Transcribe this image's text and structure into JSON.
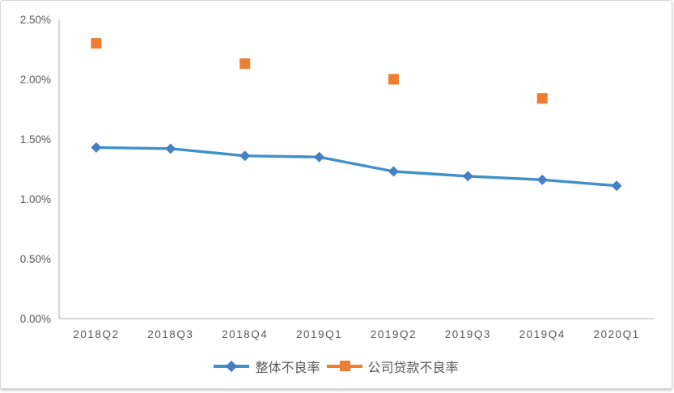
{
  "chart_data": {
    "type": "line",
    "title": "",
    "xlabel": "",
    "ylabel": "",
    "unit": "percent",
    "categories": [
      "2018Q2",
      "2018Q3",
      "2018Q4",
      "2019Q1",
      "2019Q2",
      "2019Q3",
      "2019Q4",
      "2020Q1"
    ],
    "series": [
      {
        "name": "整体不良率",
        "marker": "diamond",
        "show_line": true,
        "line_color": "#4190C9",
        "marker_color": "#467FC4",
        "values": [
          1.43,
          1.42,
          1.36,
          1.35,
          1.23,
          1.19,
          1.16,
          1.11
        ]
      },
      {
        "name": "公司贷款不良率",
        "marker": "square",
        "show_line": false,
        "line_color": "#ED7D31",
        "marker_color": "#ED7D31",
        "values": [
          2.3,
          null,
          2.13,
          null,
          2.0,
          null,
          1.84,
          null
        ]
      }
    ],
    "ylim": [
      0,
      2.5
    ],
    "y_ticks": [
      {
        "value": 0.0,
        "label": "0.00%"
      },
      {
        "value": 0.5,
        "label": "0.50%"
      },
      {
        "value": 1.0,
        "label": "1.00%"
      },
      {
        "value": 1.5,
        "label": "1.50%"
      },
      {
        "value": 2.0,
        "label": "2.00%"
      },
      {
        "value": 2.5,
        "label": "2.50%"
      }
    ],
    "grid": false,
    "legend_position": "bottom"
  },
  "colors": {
    "axis_line": "#BFBFBF",
    "tick_text": "#595959",
    "legend_text": "#595959",
    "card_border": "#D6D6D6",
    "background": "#FFFFFF"
  }
}
